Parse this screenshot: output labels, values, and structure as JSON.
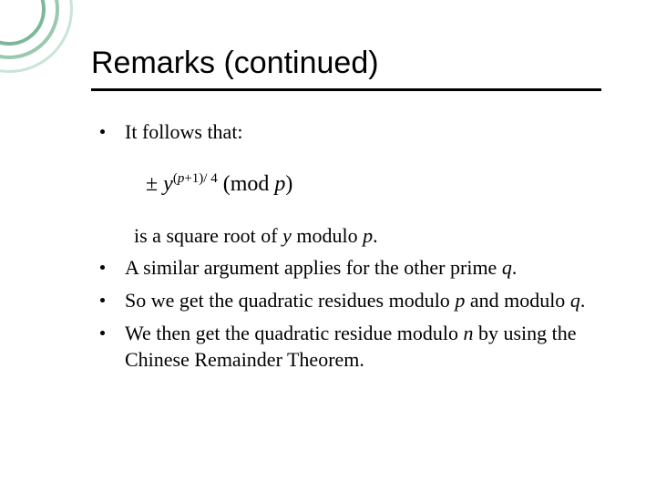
{
  "title": "Remarks (continued)",
  "bullets": {
    "b1": "It follows that:",
    "continuation": "is a square root of y modulo p.",
    "b2": "A similar argument applies for the other prime q.",
    "b3": "So we get the quadratic residues modulo p and modulo q.",
    "b4": "We then get the quadratic residue modulo n by using the Chinese Remainder Theorem."
  },
  "formula": {
    "plusminus": "±",
    "base": "y",
    "exp_open": "(",
    "exp_var": "p",
    "exp_rest": "+1)/ 4",
    "mod_open": " (mod ",
    "mod_var": "p",
    "mod_close": ")"
  },
  "style": {
    "title_fontsize": 34,
    "body_fontsize": 22,
    "formula_fontsize": 24,
    "title_color": "#000000",
    "text_color": "#000000",
    "underline_color": "#000000",
    "background_color": "#ffffff",
    "ring_colors": [
      "#c9e4d8",
      "#9bc9b0",
      "#7db89a"
    ],
    "title_font": "Comic Sans MS",
    "body_font": "Georgia"
  }
}
